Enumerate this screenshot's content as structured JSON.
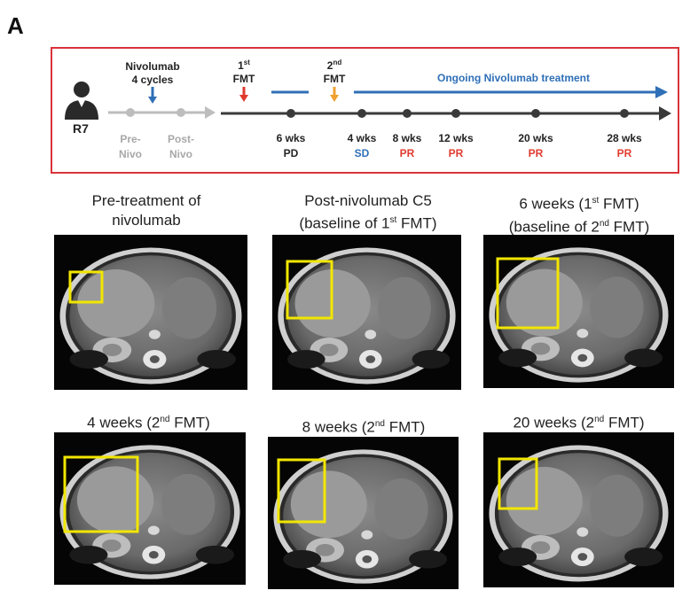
{
  "panel_label": "A",
  "timeline": {
    "patient_id": "R7",
    "nivo_label_line1": "Nivolumab",
    "nivo_label_line2": "4 cycles",
    "pre_line1": "Pre-",
    "pre_line2": "Nivo",
    "post_line1": "Post-",
    "post_line2": "Nivo",
    "fmt1_sup": "st",
    "fmt1_num": "1",
    "fmt1_word": "FMT",
    "fmt2_sup": "nd",
    "fmt2_num": "2",
    "fmt2_word": "FMT",
    "ongoing": "Ongoing Nivolumab treatment",
    "timepoints": [
      {
        "week": "6 wks",
        "response": "PD",
        "color": "#222222"
      },
      {
        "week": "4 wks",
        "response": "SD",
        "color": "#2f6fb7"
      },
      {
        "week": "8 wks",
        "response": "PR",
        "color": "#e03a2f"
      },
      {
        "week": "12 wks",
        "response": "PR",
        "color": "#e03a2f"
      },
      {
        "week": "20 wks",
        "response": "PR",
        "color": "#e03a2f"
      },
      {
        "week": "28 wks",
        "response": "PR",
        "color": "#e03a2f"
      }
    ],
    "colors": {
      "box_border": "#d9333a",
      "blue_arrow": "#2f6fb7",
      "red_arrow": "#e03a2f",
      "orange_arrow": "#f0a030",
      "main_line": "#3a3a3a",
      "gray_line": "#bdbdbd"
    }
  },
  "scans": [
    {
      "caption_line1": "Pre-treatment of",
      "caption_line2": "nivolumab"
    },
    {
      "caption_line1": "Post-nivolumab C5",
      "caption_line2_pre": "(baseline of 1",
      "caption_line2_sup": "st",
      "caption_line2_post": " FMT)"
    },
    {
      "caption_line1_pre": "6 weeks (1",
      "caption_line1_sup": "st",
      "caption_line1_post": " FMT)",
      "caption_line2_pre": "(baseline of 2",
      "caption_line2_sup": "nd",
      "caption_line2_post": " FMT)"
    },
    {
      "caption_pre": "4 weeks (2",
      "caption_sup": "nd",
      "caption_post": " FMT)"
    },
    {
      "caption_pre": "8 weeks (2",
      "caption_sup": "nd",
      "caption_post": " FMT)"
    },
    {
      "caption_pre": "20 weeks (2",
      "caption_sup": "nd",
      "caption_post": " FMT)"
    }
  ],
  "highlight_color": "#f2e600"
}
